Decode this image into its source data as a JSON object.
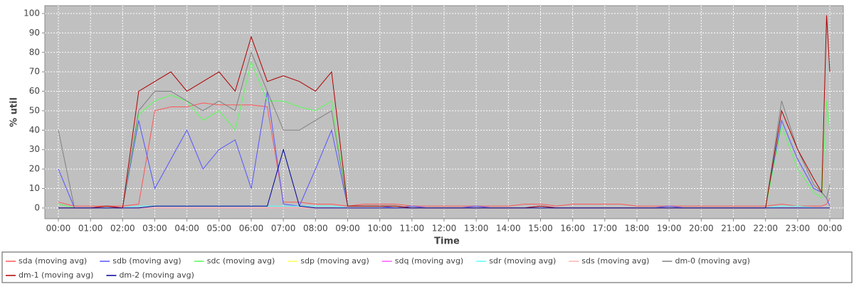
{
  "chart_data": {
    "type": "line",
    "x_label": "Time",
    "y_label": "% util",
    "x": [
      0,
      0.5,
      1,
      1.5,
      2,
      2.5,
      3,
      3.5,
      4,
      4.5,
      5,
      5.5,
      6,
      6.5,
      7,
      7.5,
      8,
      8.5,
      9,
      9.5,
      10,
      10.5,
      11,
      11.5,
      12,
      12.5,
      13,
      13.5,
      14,
      14.5,
      15,
      15.5,
      16,
      16.5,
      17,
      17.5,
      18,
      18.5,
      19,
      19.5,
      20,
      20.5,
      21,
      21.5,
      22,
      22.5,
      23,
      23.5,
      23.75,
      23.9,
      24
    ],
    "xlim": [
      -0.42,
      24.42
    ],
    "xticks": [
      {
        "value": 0,
        "label": "00:00"
      },
      {
        "value": 1,
        "label": "01:00"
      },
      {
        "value": 2,
        "label": "02:00"
      },
      {
        "value": 3,
        "label": "03:00"
      },
      {
        "value": 4,
        "label": "04:00"
      },
      {
        "value": 5,
        "label": "05:00"
      },
      {
        "value": 6,
        "label": "06:00"
      },
      {
        "value": 7,
        "label": "07:00"
      },
      {
        "value": 8,
        "label": "08:00"
      },
      {
        "value": 9,
        "label": "09:00"
      },
      {
        "value": 10,
        "label": "10:00"
      },
      {
        "value": 11,
        "label": "11:00"
      },
      {
        "value": 12,
        "label": "12:00"
      },
      {
        "value": 13,
        "label": "13:00"
      },
      {
        "value": 14,
        "label": "14:00"
      },
      {
        "value": 15,
        "label": "15:00"
      },
      {
        "value": 16,
        "label": "16:00"
      },
      {
        "value": 17,
        "label": "17:00"
      },
      {
        "value": 18,
        "label": "18:00"
      },
      {
        "value": 19,
        "label": "19:00"
      },
      {
        "value": 20,
        "label": "20:00"
      },
      {
        "value": 21,
        "label": "21:00"
      },
      {
        "value": 22,
        "label": "22:00"
      },
      {
        "value": 23,
        "label": "23:00"
      },
      {
        "value": 24,
        "label": "00:00"
      }
    ],
    "ylim": [
      -5.5,
      104
    ],
    "yticks": [
      0,
      10,
      20,
      30,
      40,
      50,
      60,
      70,
      80,
      90,
      100
    ],
    "grid": true,
    "series": [
      {
        "name": "sda (moving avg)",
        "color": "#ff5555",
        "values": [
          3,
          1,
          1,
          1,
          1,
          2,
          50,
          52,
          52,
          54,
          53,
          53,
          53,
          52,
          3,
          3,
          2,
          2,
          1,
          2,
          2,
          2,
          1,
          1,
          1,
          1,
          1,
          1,
          1,
          2,
          2,
          1,
          2,
          2,
          2,
          2,
          1,
          1,
          1,
          1,
          1,
          1,
          1,
          1,
          1,
          2,
          1,
          1,
          1,
          2,
          5
        ]
      },
      {
        "name": "sdb (moving avg)",
        "color": "#5555ff",
        "values": [
          20,
          0,
          0,
          0,
          0,
          45,
          10,
          25,
          40,
          20,
          30,
          35,
          10,
          60,
          2,
          1,
          20,
          40,
          1,
          1,
          1,
          0,
          1,
          0,
          0,
          0,
          1,
          0,
          0,
          0,
          1,
          0,
          0,
          0,
          0,
          0,
          0,
          0,
          1,
          0,
          0,
          0,
          0,
          0,
          0,
          45,
          25,
          10,
          8,
          5,
          1
        ]
      },
      {
        "name": "sdc (moving avg)",
        "color": "#55ff55",
        "values": [
          2,
          0,
          0,
          0,
          0,
          48,
          55,
          58,
          55,
          45,
          50,
          40,
          75,
          55,
          55,
          52,
          50,
          55,
          1,
          1,
          1,
          1,
          0,
          0,
          0,
          0,
          0,
          0,
          0,
          0,
          0,
          0,
          0,
          0,
          0,
          0,
          0,
          0,
          0,
          0,
          0,
          0,
          0,
          0,
          0,
          42,
          20,
          8,
          5,
          55,
          40
        ]
      },
      {
        "name": "sdp (moving avg)",
        "color": "#ffff55",
        "values": [
          0,
          0,
          0,
          0,
          0,
          0,
          0,
          0,
          0,
          0,
          0,
          0,
          0,
          0,
          0,
          0,
          0,
          0,
          0,
          0,
          0,
          0,
          0,
          0,
          0,
          0,
          0,
          0,
          0,
          0,
          0,
          0,
          0,
          0,
          0,
          0,
          0,
          0,
          0,
          0,
          0,
          0,
          0,
          0,
          0,
          0,
          0,
          0,
          0,
          0,
          0
        ]
      },
      {
        "name": "sdq (moving avg)",
        "color": "#ff55ff",
        "values": [
          0,
          0,
          0,
          0,
          0,
          0,
          0,
          0,
          0,
          0,
          0,
          0,
          0,
          0,
          0,
          0,
          0,
          0,
          0,
          0,
          0,
          0,
          0,
          0,
          0,
          0,
          0,
          0,
          0,
          0,
          0,
          0,
          0,
          0,
          0,
          0,
          0,
          0,
          0,
          0,
          0,
          0,
          0,
          0,
          0,
          0,
          0,
          0,
          0,
          0,
          0
        ]
      },
      {
        "name": "sdr (moving avg)",
        "color": "#55ffff",
        "values": [
          0,
          0,
          0,
          0,
          0,
          1,
          1,
          1,
          1,
          1,
          1,
          1,
          1,
          1,
          1,
          1,
          1,
          1,
          0,
          0,
          0,
          0,
          0,
          0,
          0,
          0,
          0,
          0,
          0,
          0,
          0,
          0,
          0,
          0,
          0,
          0,
          0,
          0,
          0,
          0,
          0,
          0,
          0,
          0,
          0,
          1,
          1,
          0,
          0,
          0,
          0
        ]
      },
      {
        "name": "sds (moving avg)",
        "color": "#ffafaf",
        "values": [
          0,
          0,
          0,
          0,
          0,
          0,
          0,
          0,
          0,
          0,
          0,
          0,
          0,
          0,
          0,
          0,
          0,
          0,
          0,
          0,
          0,
          0,
          0,
          0,
          0,
          0,
          0,
          0,
          0,
          0,
          0,
          0,
          0,
          0,
          0,
          0,
          0,
          0,
          0,
          0,
          0,
          0,
          0,
          0,
          0,
          0,
          0,
          0,
          0,
          0,
          0
        ]
      },
      {
        "name": "dm-0 (moving avg)",
        "color": "#808080",
        "values": [
          40,
          0,
          0,
          0,
          0,
          50,
          60,
          60,
          55,
          50,
          55,
          50,
          80,
          60,
          40,
          40,
          45,
          50,
          1,
          1,
          1,
          1,
          0,
          0,
          0,
          0,
          0,
          0,
          0,
          0,
          0,
          0,
          0,
          0,
          0,
          0,
          0,
          0,
          0,
          0,
          0,
          0,
          0,
          0,
          0,
          55,
          30,
          12,
          8,
          5,
          12
        ]
      },
      {
        "name": "dm-1 (moving avg)",
        "color": "#b00000",
        "values": [
          0,
          0,
          0,
          1,
          0,
          60,
          65,
          70,
          60,
          65,
          70,
          60,
          88,
          65,
          68,
          65,
          60,
          70,
          1,
          1,
          1,
          1,
          0,
          0,
          0,
          0,
          0,
          0,
          0,
          0,
          1,
          0,
          0,
          0,
          0,
          0,
          0,
          0,
          0,
          0,
          0,
          0,
          0,
          0,
          0,
          50,
          30,
          15,
          8,
          99,
          70
        ]
      },
      {
        "name": "dm-2 (moving avg)",
        "color": "#000099",
        "values": [
          0,
          0,
          0,
          0,
          0,
          0,
          1,
          1,
          1,
          1,
          1,
          1,
          1,
          1,
          30,
          1,
          0,
          0,
          0,
          0,
          0,
          0,
          0,
          0,
          0,
          0,
          0,
          0,
          0,
          0,
          0,
          0,
          0,
          0,
          0,
          0,
          0,
          0,
          0,
          0,
          0,
          0,
          0,
          0,
          0,
          0,
          0,
          0,
          0,
          0,
          0
        ]
      }
    ]
  }
}
